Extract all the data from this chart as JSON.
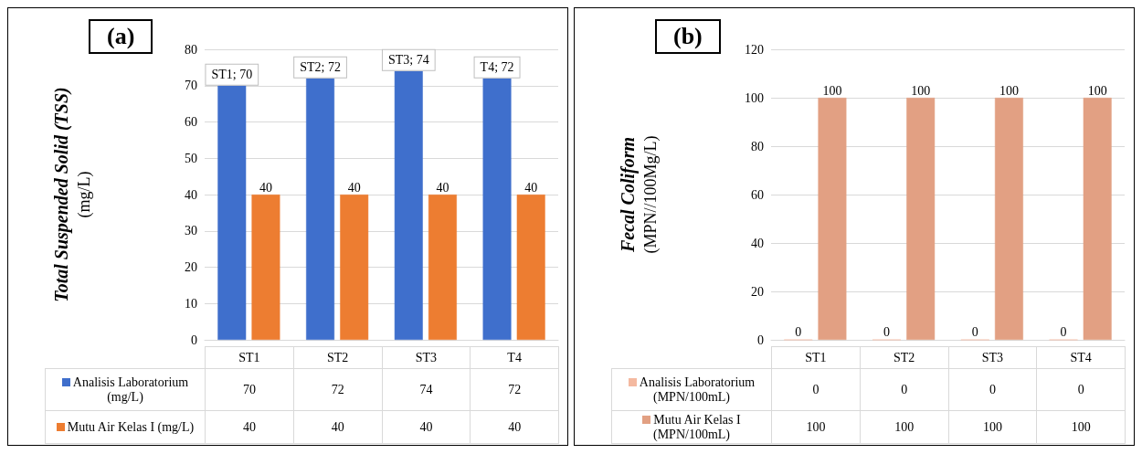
{
  "chart_data": [
    {
      "type": "bar",
      "title": "(a)",
      "ylabel": "Total Suspended Solid (TSS)\n(mg/L)",
      "categories": [
        null,
        null,
        null,
        null
      ],
      "series": [
        {
          "color": "#3f6fcc",
          "values": [
            70,
            72,
            74,
            72
          ],
          "value_labels": [
            "ST1; 70",
            "ST2; 72",
            "ST3; 74",
            "T4; 72"
          ]
        },
        {
          "color": "#ed7d31",
          "values": [
            40,
            40,
            40,
            40
          ],
          "value_labels": [
            "40",
            "40",
            "40",
            "40"
          ]
        }
      ],
      "ylim": [
        0,
        80
      ],
      "yticks": [
        0,
        10,
        20,
        30,
        40,
        50,
        60,
        70,
        80
      ],
      "grid": "y"
    },
    {
      "type": "other",
      "categories": [
        "ST1",
        "ST2",
        "ST3",
        "T4"
      ],
      "series": [
        {
          "name": "Analisis Laboratorium (mg/L)",
          "color": "#3f6fcc",
          "values": [
            70,
            72,
            74,
            72
          ]
        },
        {
          "name": "Mutu Air Kelas I (mg/L)",
          "color": "#ed7d31",
          "values": [
            40,
            40,
            40,
            40
          ]
        }
      ],
      "legend": "left",
      "data_labels": true
    },
    {
      "type": "bar",
      "title": "(b)",
      "ylabel": "Fecal Coliform\n(MPN//100Mg/L)",
      "categories": [
        null,
        null,
        null,
        null
      ],
      "series": [
        {
          "color": "#f4b9a0",
          "values": [
            0,
            0,
            0,
            0
          ],
          "value_labels": [
            "0",
            "0",
            "0",
            "0"
          ]
        },
        {
          "color": "#e2a083",
          "values": [
            100,
            100,
            100,
            100
          ],
          "value_labels": [
            "100",
            "100",
            "100",
            "100"
          ]
        }
      ],
      "ylim": [
        0,
        120
      ],
      "yticks": [
        0,
        20,
        40,
        60,
        80,
        100,
        120
      ],
      "grid": "y"
    },
    {
      "type": "other",
      "categories": [
        "ST1",
        "ST2",
        "ST3",
        "ST4"
      ],
      "series": [
        {
          "name": "Analisis Laboratorium (MPN/100mL)",
          "color": "#f4b9a0",
          "values": [
            0,
            0,
            0,
            0
          ]
        },
        {
          "name": "Mutu Air Kelas I (MPN/100mL)",
          "color": "#e2a083",
          "values": [
            100,
            100,
            100,
            100
          ]
        }
      ],
      "legend": "left",
      "data_labels": true
    }
  ]
}
